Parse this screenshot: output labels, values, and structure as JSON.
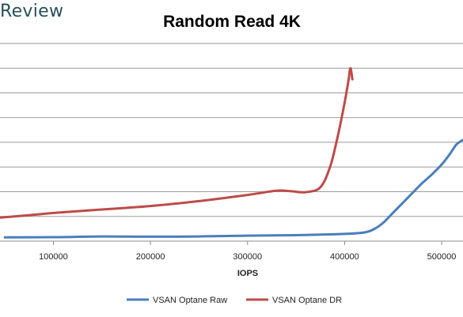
{
  "brand": {
    "text": "Review"
  },
  "chart_data": {
    "type": "line",
    "title": "Random Read 4K",
    "xlabel": "IOPS",
    "ylabel": "",
    "xlim": [
      45000,
      522000
    ],
    "ylim": [
      0,
      8
    ],
    "xticks": [
      100000,
      200000,
      300000,
      400000,
      500000
    ],
    "xtick_labels": [
      "100000",
      "200000",
      "300000",
      "400000",
      "500000"
    ],
    "grid": true,
    "legend": "bottom",
    "series": [
      {
        "name": "VSAN Optane Raw",
        "color": "#4a7ebb",
        "points": [
          [
            50000,
            0.15
          ],
          [
            100000,
            0.16
          ],
          [
            150000,
            0.19
          ],
          [
            200000,
            0.18
          ],
          [
            250000,
            0.19
          ],
          [
            300000,
            0.22
          ],
          [
            350000,
            0.24
          ],
          [
            380000,
            0.27
          ],
          [
            400000,
            0.29
          ],
          [
            420000,
            0.35
          ],
          [
            430000,
            0.48
          ],
          [
            440000,
            0.75
          ],
          [
            450000,
            1.15
          ],
          [
            460000,
            1.55
          ],
          [
            470000,
            1.95
          ],
          [
            480000,
            2.35
          ],
          [
            490000,
            2.7
          ],
          [
            500000,
            3.1
          ],
          [
            508000,
            3.5
          ],
          [
            515000,
            3.9
          ],
          [
            522000,
            4.1
          ]
        ]
      },
      {
        "name": "VSAN Optane DR",
        "color": "#be4b48",
        "points": [
          [
            45000,
            0.95
          ],
          [
            75000,
            1.05
          ],
          [
            100000,
            1.14
          ],
          [
            150000,
            1.28
          ],
          [
            200000,
            1.42
          ],
          [
            250000,
            1.62
          ],
          [
            300000,
            1.87
          ],
          [
            330000,
            2.04
          ],
          [
            345000,
            2.02
          ],
          [
            360000,
            1.98
          ],
          [
            375000,
            2.18
          ],
          [
            385000,
            3.0
          ],
          [
            393000,
            4.25
          ],
          [
            400000,
            5.6
          ],
          [
            404000,
            6.5
          ],
          [
            406000,
            7.0
          ],
          [
            408000,
            6.55
          ]
        ]
      }
    ]
  }
}
